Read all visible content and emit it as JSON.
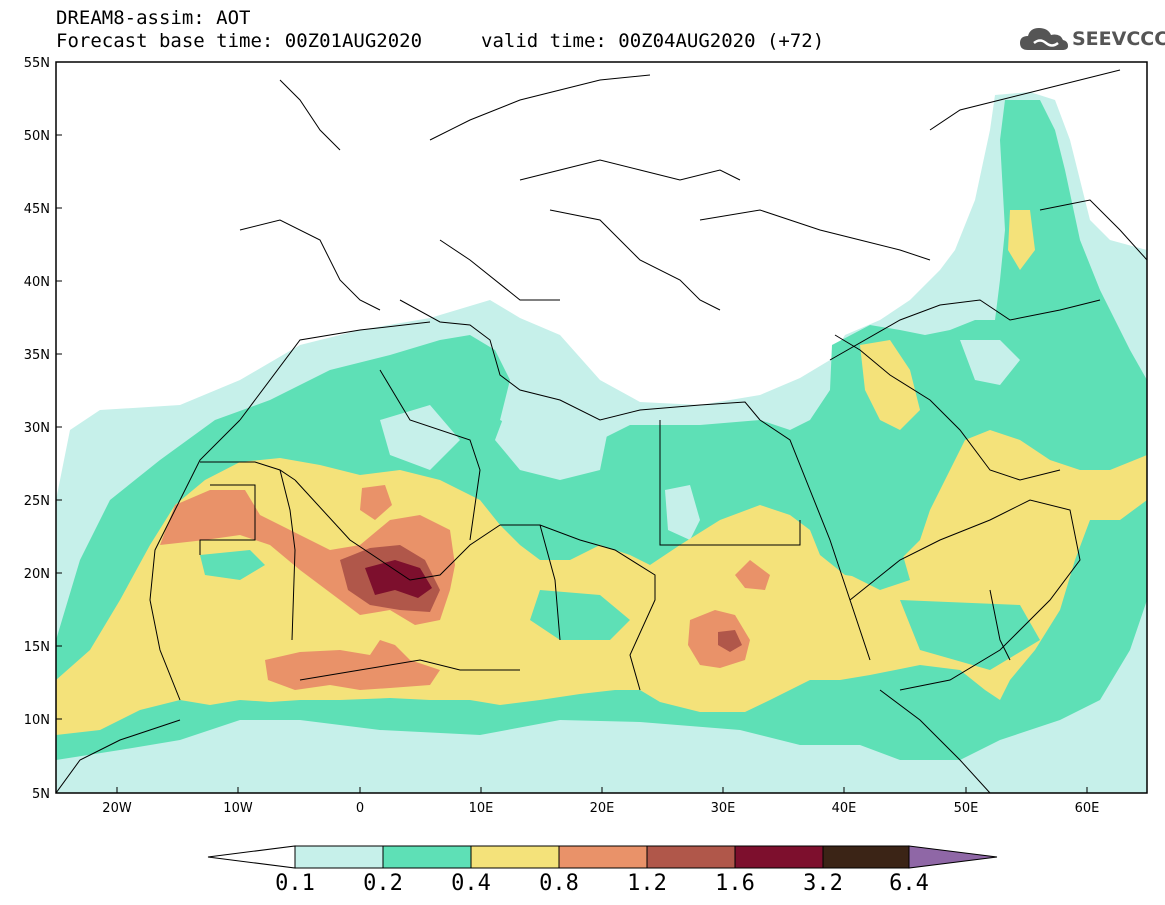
{
  "title": {
    "line1": "DREAM8-assim: AOT",
    "line2": "Forecast base time: 00Z01AUG2020",
    "line3": "valid time: 00Z04AUG2020 (+72)"
  },
  "logo": {
    "text": "SEEVCCC",
    "icon": "cloud-icon"
  },
  "map": {
    "lon_ticks": [
      "20W",
      "10W",
      "0",
      "10E",
      "20E",
      "30E",
      "40E",
      "50E",
      "60E"
    ],
    "lat_ticks": [
      "55N",
      "50N",
      "45N",
      "40N",
      "35N",
      "30N",
      "25N",
      "20N",
      "15N",
      "10N",
      "5N"
    ],
    "extent": {
      "lon": [
        -25,
        65
      ],
      "lat": [
        5,
        55
      ]
    },
    "variable": "AOT"
  },
  "colorbar": {
    "labels": [
      "0.1",
      "0.2",
      "0.4",
      "0.8",
      "1.2",
      "1.6",
      "3.2",
      "6.4"
    ],
    "colors": {
      "under": "#ffffff",
      "b1": "#c6f0ea",
      "b2": "#5ee0b6",
      "b3": "#f4e27a",
      "b4": "#e99269",
      "b5": "#b0574a",
      "b6": "#7d0f2d",
      "b7": "#3b2416",
      "over": "#8f67a6"
    }
  }
}
